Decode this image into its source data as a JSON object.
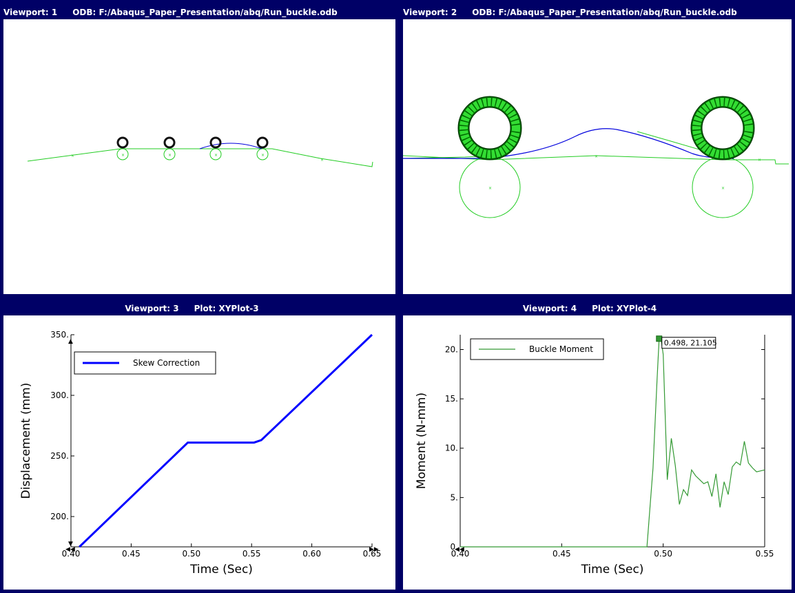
{
  "viewports": [
    {
      "title_vp": "Viewport: 1",
      "title_src": "ODB: F:/Abaqus_Paper_Presentation/abq/Run_buckle.odb"
    },
    {
      "title_vp": "Viewport: 2",
      "title_src": "ODB: F:/Abaqus_Paper_Presentation/abq/Run_buckle.odb"
    },
    {
      "title_vp": "Viewport: 3",
      "title_src": "Plot: XYPlot-3"
    },
    {
      "title_vp": "Viewport: 4",
      "title_src": "Plot: XYPlot-4"
    }
  ],
  "colors": {
    "frame": "#000066",
    "mesh": "#22cc22",
    "paper": "#0000dd",
    "roller": "#00cc00"
  },
  "chart_data": [
    {
      "type": "line",
      "xlabel": "Time (Sec)",
      "ylabel": "Displacement (mm)",
      "xlim": [
        0.4,
        0.65
      ],
      "ylim": [
        175,
        350
      ],
      "xticks": [
        "0.40",
        "0.45",
        "0.50",
        "0.55",
        "0.60",
        "0.65"
      ],
      "yticks": [
        "200.",
        "250.",
        "300.",
        "350."
      ],
      "legend_position": "top-left",
      "series": [
        {
          "name": "Skew Correction",
          "color": "#0000ff",
          "x": [
            0.407,
            0.497,
            0.552,
            0.558,
            0.65
          ],
          "y": [
            175,
            261,
            261,
            263,
            350
          ]
        }
      ]
    },
    {
      "type": "line",
      "xlabel": "Time (Sec)",
      "ylabel": "Moment (N-mm)",
      "xlim": [
        0.4,
        0.55
      ],
      "ylim": [
        0,
        21.5
      ],
      "xticks": [
        "0.40",
        "0.45",
        "0.50",
        "0.55"
      ],
      "yticks": [
        "0.",
        "5.",
        "10.",
        "15.",
        "20."
      ],
      "legend_position": "top-left",
      "annotation": "0.498, 21.105",
      "series": [
        {
          "name": "Buckle Moment",
          "color": "#339933",
          "x": [
            0.4,
            0.492,
            0.495,
            0.497,
            0.498,
            0.499,
            0.5,
            0.502,
            0.504,
            0.506,
            0.508,
            0.51,
            0.512,
            0.514,
            0.516,
            0.518,
            0.52,
            0.522,
            0.524,
            0.526,
            0.528,
            0.53,
            0.532,
            0.534,
            0.536,
            0.538,
            0.54,
            0.542,
            0.544,
            0.546,
            0.548,
            0.55
          ],
          "y": [
            0,
            0,
            8,
            17,
            21.1,
            21.0,
            19.5,
            6.8,
            11.0,
            8.2,
            4.3,
            5.8,
            5.2,
            7.8,
            7.2,
            6.8,
            6.4,
            6.6,
            5.1,
            7.4,
            4.0,
            6.6,
            5.3,
            8.1,
            8.6,
            8.3,
            10.7,
            8.5,
            8.0,
            7.6,
            7.7,
            7.8
          ]
        }
      ]
    }
  ]
}
